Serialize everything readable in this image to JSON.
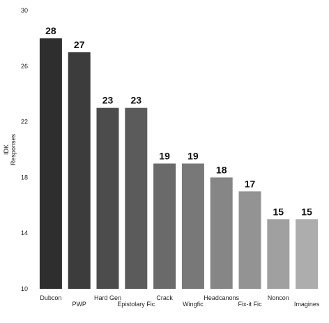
{
  "chart_data": {
    "type": "bar",
    "title": "",
    "xlabel": "",
    "ylabel": [
      "IDK",
      "Responses"
    ],
    "ylim": [
      10,
      30
    ],
    "yticks": [
      10,
      14,
      18,
      22,
      26,
      30
    ],
    "grid": false,
    "legend": "none",
    "categories": [
      "Dubcon",
      "PWP",
      "Hard Gen",
      "Epistolary Fic",
      "Crack",
      "Wingfic",
      "Headcanons",
      "Fix-it Fic",
      "Noncon",
      "Imagines"
    ],
    "values": [
      28,
      27,
      23,
      23,
      19,
      19,
      18,
      17,
      15,
      15
    ],
    "colors": [
      "#2e2e2e",
      "#3c3c3c",
      "#4c4c4c",
      "#5b5b5b",
      "#6a6a6a",
      "#787878",
      "#868686",
      "#939393",
      "#a0a0a0",
      "#adadad"
    ]
  }
}
